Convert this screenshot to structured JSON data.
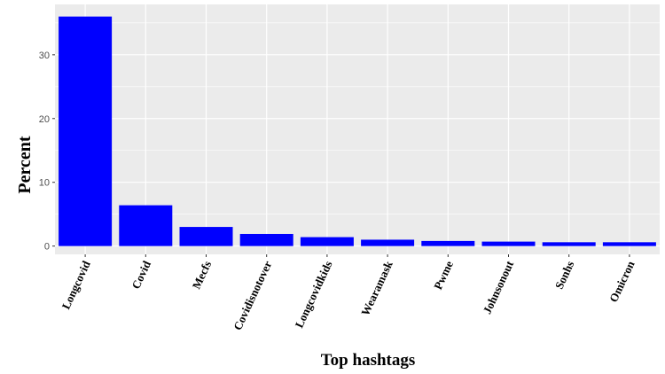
{
  "chart_data": {
    "type": "bar",
    "categories": [
      "Longcovid",
      "Covid",
      "Mecfs",
      "Covidisnotover",
      "Longcovidkids",
      "Wearamask",
      "Pwme",
      "Johnsonout",
      "Sonhs",
      "Omicron"
    ],
    "values": [
      36.0,
      6.4,
      3.0,
      1.9,
      1.4,
      1.0,
      0.8,
      0.7,
      0.6,
      0.6
    ],
    "xlabel": "Top hashtags",
    "ylabel": "Percent",
    "ylim": [
      -1.3,
      37.9
    ],
    "yticks": [
      0,
      10,
      20,
      30
    ],
    "grid": true,
    "bar_color": "#0000ff",
    "panel_color": "#ebebeb",
    "grid_color": "#ffffff"
  }
}
